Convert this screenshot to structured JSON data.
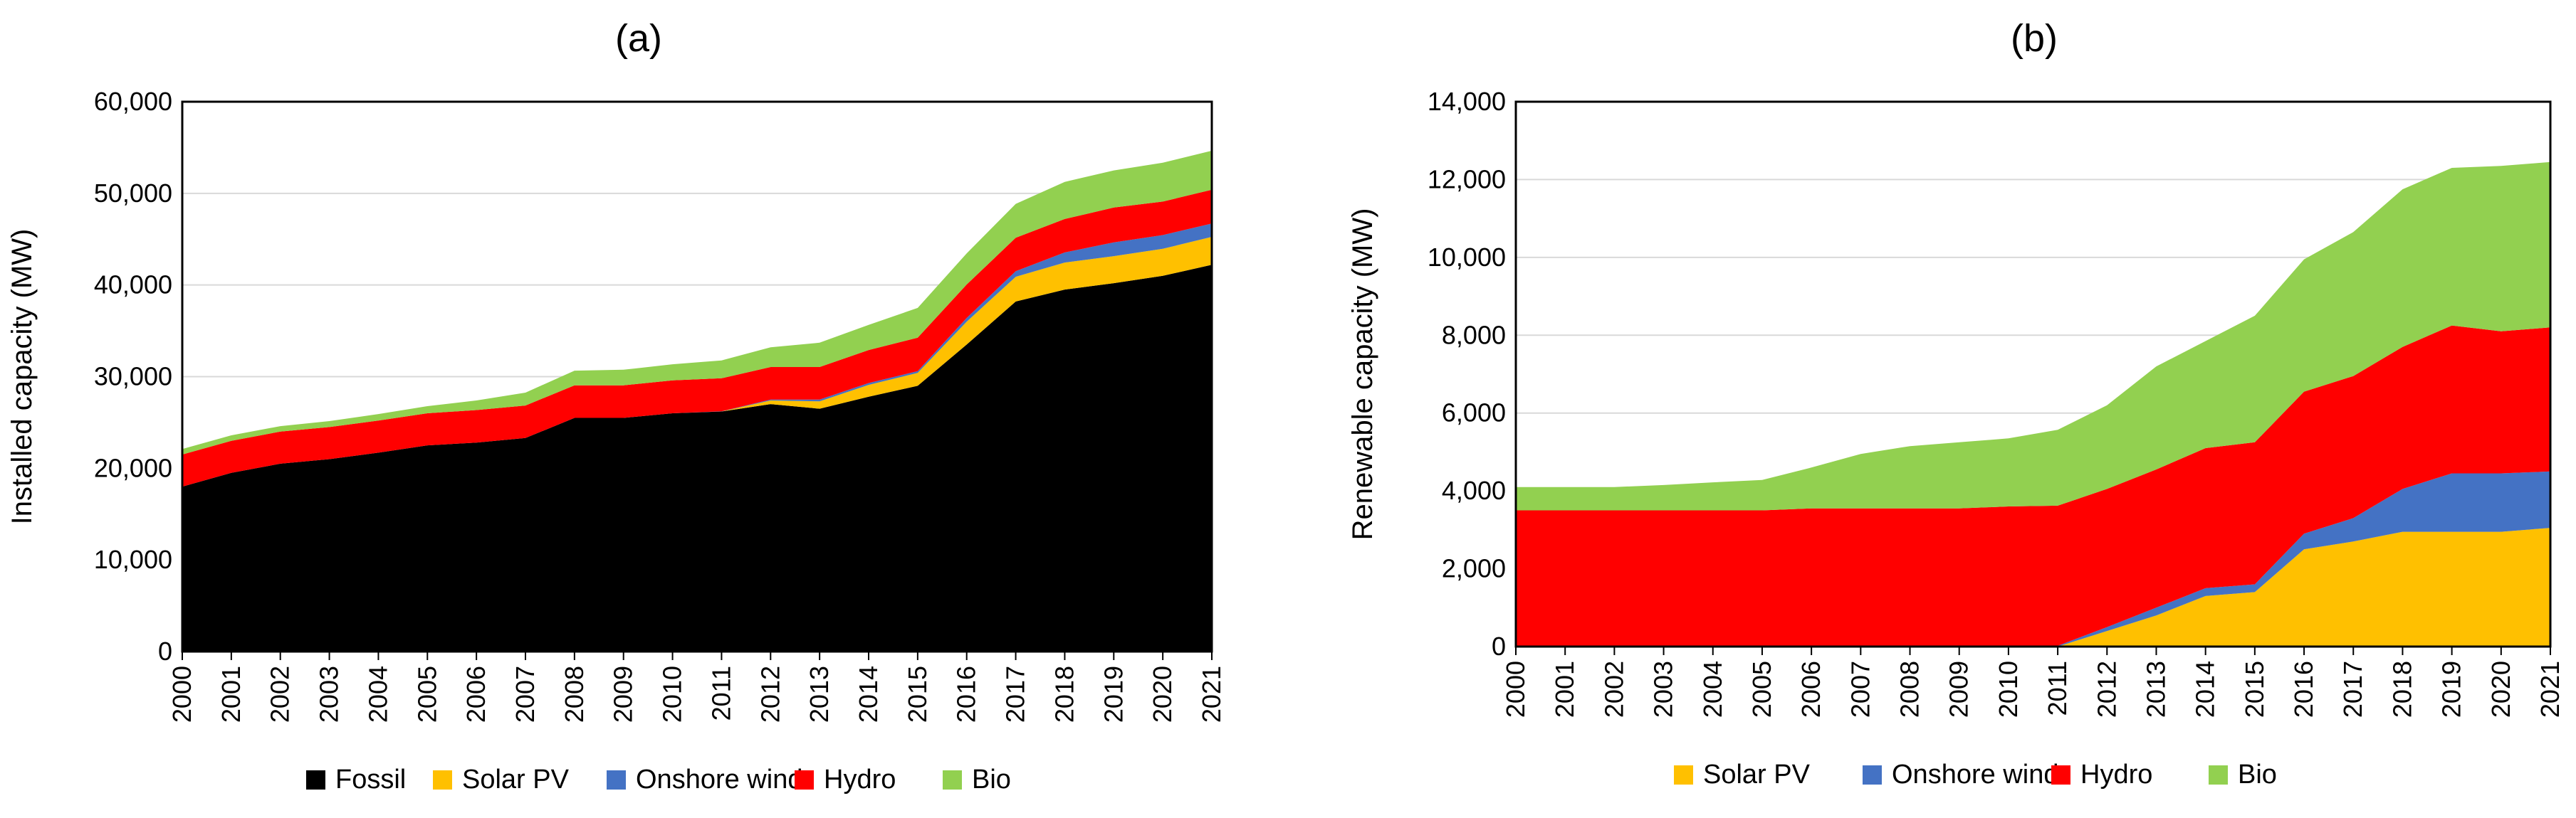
{
  "chart_data": [
    {
      "type": "area",
      "stacked": true,
      "title": "(a)",
      "xlabel": "",
      "ylabel": "Installed capacity (MW)",
      "ylim": [
        0,
        60000
      ],
      "yticks": [
        0,
        10000,
        20000,
        30000,
        40000,
        50000,
        60000
      ],
      "ytick_labels": [
        "0",
        "10,000",
        "20,000",
        "30,000",
        "40,000",
        "50,000",
        "60,000"
      ],
      "grid": true,
      "legend_position": "bottom",
      "x": [
        "2000",
        "2001",
        "2002",
        "2003",
        "2004",
        "2005",
        "2006",
        "2007",
        "2008",
        "2009",
        "2010",
        "2011",
        "2012",
        "2013",
        "2014",
        "2015",
        "2016",
        "2017",
        "2018",
        "2019",
        "2020",
        "2021"
      ],
      "series": [
        {
          "name": "Fossil",
          "color": "#000000",
          "values": [
            18000,
            19500,
            20500,
            21000,
            21700,
            22500,
            22800,
            23300,
            25500,
            25500,
            26000,
            26200,
            27000,
            26500,
            27800,
            29000,
            33500,
            38200,
            39500,
            40200,
            41000,
            42200
          ]
        },
        {
          "name": "Solar PV",
          "color": "#FFC000",
          "values": [
            0,
            0,
            0,
            0,
            0,
            0,
            0,
            0,
            0,
            0,
            0,
            0,
            400,
            800,
            1300,
            1400,
            2500,
            2700,
            2950,
            2950,
            2950,
            3050
          ]
        },
        {
          "name": "Onshore wind",
          "color": "#4472C4",
          "values": [
            0,
            0,
            0,
            0,
            0,
            0,
            0,
            0,
            0,
            0,
            0,
            20,
            100,
            200,
            200,
            200,
            400,
            600,
            1100,
            1500,
            1500,
            1450
          ]
        },
        {
          "name": "Hydro",
          "color": "#FF0000",
          "values": [
            3500,
            3500,
            3500,
            3500,
            3500,
            3500,
            3550,
            3550,
            3550,
            3550,
            3600,
            3600,
            3550,
            3550,
            3600,
            3650,
            3650,
            3650,
            3650,
            3800,
            3650,
            3700
          ]
        },
        {
          "name": "Bio",
          "color": "#92D050",
          "values": [
            600,
            600,
            600,
            650,
            720,
            780,
            1050,
            1400,
            1600,
            1700,
            1750,
            1950,
            2150,
            2650,
            2750,
            3250,
            3400,
            3700,
            4050,
            4050,
            4250,
            4250
          ]
        }
      ]
    },
    {
      "type": "area",
      "stacked": true,
      "title": "(b)",
      "xlabel": "",
      "ylabel": "Renewable capacity (MW)",
      "ylim": [
        0,
        14000
      ],
      "yticks": [
        0,
        2000,
        4000,
        6000,
        8000,
        10000,
        12000,
        14000
      ],
      "ytick_labels": [
        "0",
        "2,000",
        "4,000",
        "6,000",
        "8,000",
        "10,000",
        "12,000",
        "14,000"
      ],
      "grid": true,
      "legend_position": "bottom",
      "x": [
        "2000",
        "2001",
        "2002",
        "2003",
        "2004",
        "2005",
        "2006",
        "2007",
        "2008",
        "2009",
        "2010",
        "2011",
        "2012",
        "2013",
        "2014",
        "2015",
        "2016",
        "2017",
        "2018",
        "2019",
        "2020",
        "2021"
      ],
      "series": [
        {
          "name": "Solar PV",
          "color": "#FFC000",
          "values": [
            0,
            0,
            0,
            0,
            0,
            0,
            0,
            0,
            0,
            0,
            0,
            0,
            400,
            800,
            1300,
            1400,
            2500,
            2700,
            2950,
            2950,
            2950,
            3050
          ]
        },
        {
          "name": "Onshore wind",
          "color": "#4472C4",
          "values": [
            0,
            0,
            0,
            0,
            0,
            0,
            0,
            0,
            0,
            0,
            0,
            20,
            100,
            200,
            200,
            200,
            400,
            600,
            1100,
            1500,
            1500,
            1450
          ]
        },
        {
          "name": "Hydro",
          "color": "#FF0000",
          "values": [
            3500,
            3500,
            3500,
            3500,
            3500,
            3500,
            3550,
            3550,
            3550,
            3550,
            3600,
            3600,
            3550,
            3550,
            3600,
            3650,
            3650,
            3650,
            3650,
            3800,
            3650,
            3700
          ]
        },
        {
          "name": "Bio",
          "color": "#92D050",
          "values": [
            600,
            600,
            600,
            650,
            720,
            780,
            1050,
            1400,
            1600,
            1700,
            1750,
            1950,
            2150,
            2650,
            2750,
            3250,
            3400,
            3700,
            4050,
            4050,
            4250,
            4250
          ]
        }
      ]
    }
  ]
}
